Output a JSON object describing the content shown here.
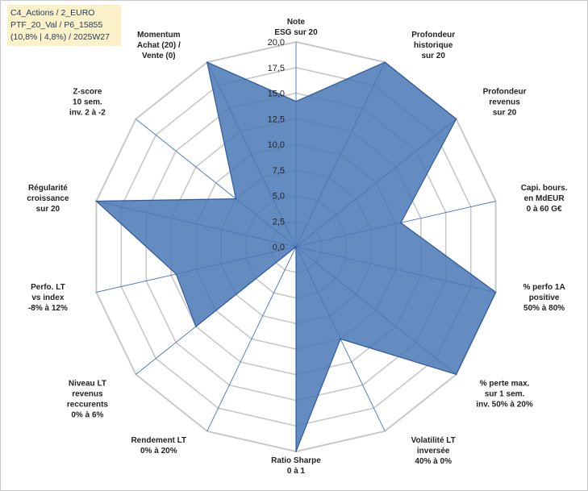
{
  "info_box": {
    "line1": "C4_Actions / 2_EURO",
    "line2": "PTF_20_Val / P6_15855",
    "line3": "(10,8% | 4,8%) / 2025W27"
  },
  "colors": {
    "fill": "#4a78b5",
    "stroke": "#2f5a9c",
    "grid": "#c8c8c8",
    "spoke": "#4472c4",
    "info_bg": "#fdf1c9"
  },
  "chart_data": {
    "type": "radar",
    "rlim": [
      0,
      20
    ],
    "ticks": [
      "0,0",
      "2,5",
      "5,0",
      "7,5",
      "10,0",
      "12,5",
      "15,0",
      "17,5",
      "20,0"
    ],
    "tick_values": [
      0,
      2.5,
      5,
      7.5,
      10,
      12.5,
      15,
      17.5,
      20
    ],
    "grid": true,
    "axes": [
      {
        "label": [
          "Note",
          "ESG sur 20"
        ],
        "value": 14.2
      },
      {
        "label": [
          "Profondeur",
          "historique",
          "sur 20"
        ],
        "value": 20
      },
      {
        "label": [
          "Profondeur",
          "revenus",
          "sur 20"
        ],
        "value": 20
      },
      {
        "label": [
          "Capi. bours.",
          "en MdEUR",
          "0 à 60 G€"
        ],
        "value": 10.5
      },
      {
        "label": [
          "% perfo 1A",
          "positive",
          "50% à 80%"
        ],
        "value": 20
      },
      {
        "label": [
          "% perte max.",
          "sur 1 sem.",
          "inv. 50% à 20%"
        ],
        "value": 20
      },
      {
        "label": [
          "Volatilité LT",
          "inversée",
          "40% à 0%"
        ],
        "value": 10
      },
      {
        "label": [
          "Ratio Sharpe",
          "0 à 1"
        ],
        "value": 20
      },
      {
        "label": [
          "Rendement LT",
          "0% à 20%"
        ],
        "value": 0
      },
      {
        "label": [
          "Niveau LT",
          "revenus",
          "reccurents",
          "0% à 6%"
        ],
        "value": 12.5
      },
      {
        "label": [
          "Perfo. LT",
          "vs index",
          "-8% à 12%"
        ],
        "value": 12
      },
      {
        "label": [
          "Régularité",
          "croissance",
          "sur 20"
        ],
        "value": 20
      },
      {
        "label": [
          "Z-score",
          "10 sem.",
          "inv. 2 à -2"
        ],
        "value": 7.5
      },
      {
        "label": [
          "Momentum",
          "Achat (20) /",
          "Vente (0)"
        ],
        "value": 20
      }
    ]
  }
}
